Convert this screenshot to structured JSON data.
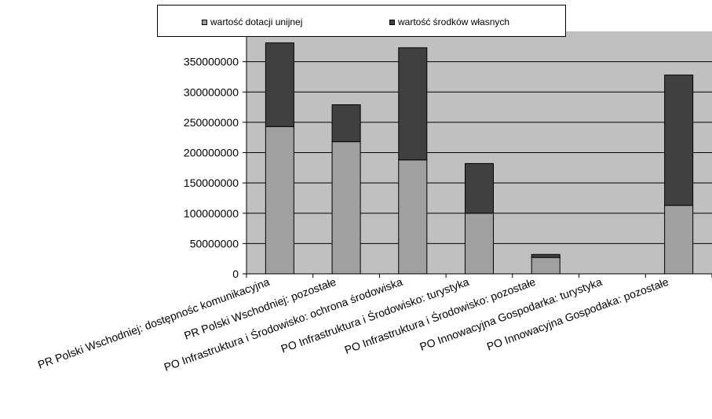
{
  "chart_data": {
    "type": "bar",
    "stacked": true,
    "categories": [
      "PR Polski Wschodniej: dostępnośc komunikacyjna",
      "PR Polski Wschodniej: pozostałe",
      "PO Infrastruktura i Środowisko: ochrona środowiska",
      "PO Infrastruktura i Środowisko: turystyka",
      "PO Infrastruktura i Środowisko: pozostałe",
      "PO Innowacyjna Gospodarka: turystyka",
      "PO Innowacyjna Gospodaka: pozostałe"
    ],
    "series": [
      {
        "name": "wartość dotacji unijnej",
        "color": "#a0a0a0",
        "values": [
          243000000,
          218000000,
          188000000,
          100000000,
          27000000,
          0,
          113000000
        ]
      },
      {
        "name": "wartość środków własnych",
        "color": "#404040",
        "values": [
          138000000,
          61000000,
          185000000,
          82000000,
          5000000,
          0,
          215000000
        ]
      }
    ],
    "yticks": [
      "0",
      "50000000",
      "100000000",
      "150000000",
      "200000000",
      "250000000",
      "300000000",
      "350000000"
    ],
    "ylim": [
      0,
      400000000
    ],
    "grid": true,
    "legend_position": "top",
    "plot_background": "#c0c0c0"
  }
}
